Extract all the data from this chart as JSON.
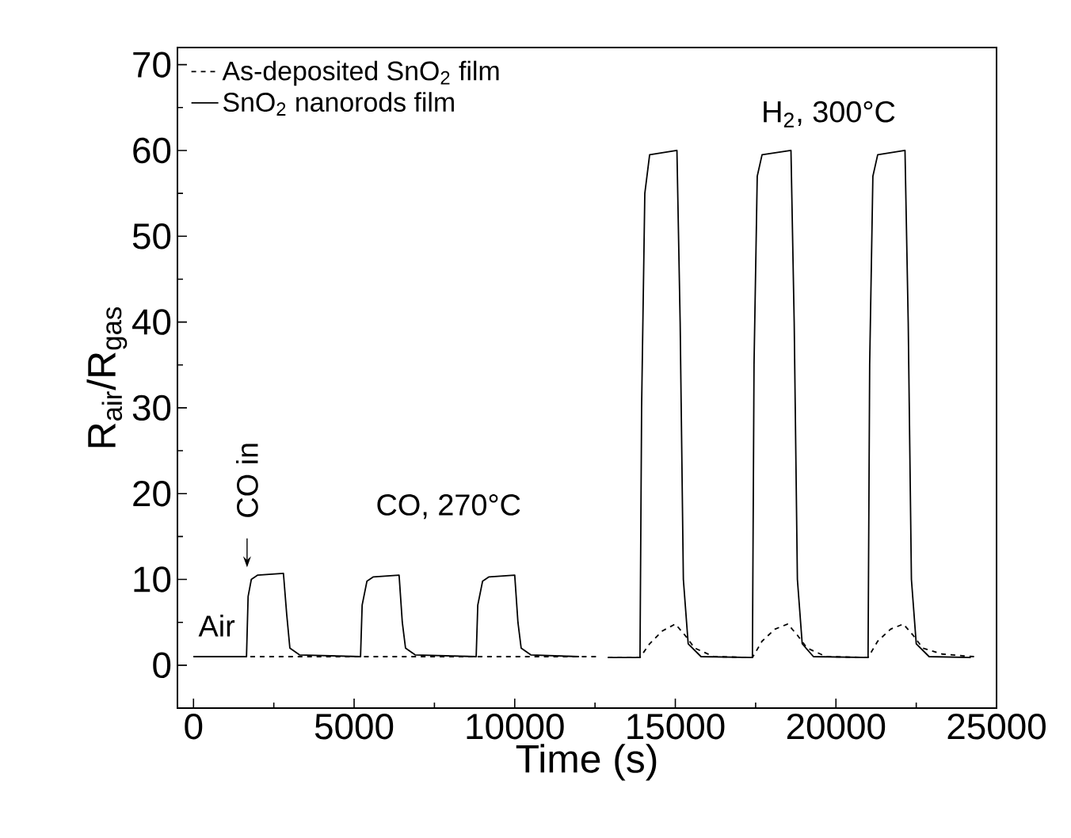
{
  "chart_data": {
    "type": "line",
    "xlabel": "Time (s)",
    "ylabel": "R$_{air}$/R$_{gas}$",
    "xlim": [
      -500,
      25000
    ],
    "ylim": [
      -5,
      72
    ],
    "xticks": [
      0,
      5000,
      10000,
      15000,
      20000,
      25000
    ],
    "yticks": [
      0,
      10,
      20,
      30,
      40,
      50,
      60,
      70
    ],
    "legend": "top left",
    "annotations": [
      "Air",
      "CO in",
      "CO, 270°C",
      "H$_{2}$, 300°C"
    ],
    "series": [
      {
        "name": "As-deposited SnO$_{2}$ film",
        "color": "#000000",
        "line_style": "dashed",
        "x": [
          0,
          12600,
          12750,
          12900,
          13900,
          14200,
          14600,
          15000,
          15300,
          15600,
          16200,
          17400,
          17700,
          18100,
          18500,
          18800,
          19100,
          19700,
          21000,
          21300,
          21700,
          22100,
          22400,
          22700,
          23300,
          24300
        ],
        "values": [
          1,
          1,
          null,
          0.9,
          0.9,
          2.5,
          4,
          4.8,
          3.5,
          2,
          1,
          0.9,
          2.8,
          4.2,
          4.8,
          3.5,
          2,
          1,
          0.9,
          2.8,
          4.2,
          4.8,
          3.5,
          2,
          1.3,
          1
        ]
      },
      {
        "name": "SnO$_{2}$ nanorods film",
        "color": "#000000",
        "line_style": "solid",
        "x": [
          0,
          1650,
          1700,
          1800,
          2000,
          2800,
          2900,
          3000,
          3300,
          5200,
          5250,
          5400,
          5600,
          6400,
          6500,
          6600,
          6900,
          8800,
          8850,
          9000,
          9200,
          10000,
          10100,
          10200,
          10500,
          12000,
          12500,
          12900,
          13900,
          13950,
          14050,
          14200,
          15050,
          15150,
          15250,
          15400,
          15800,
          17400,
          17450,
          17550,
          17700,
          18600,
          18700,
          18800,
          18950,
          19300,
          21000,
          21050,
          21150,
          21300,
          22150,
          22250,
          22350,
          22500,
          22900,
          24200
        ],
        "values": [
          1,
          1,
          8,
          10,
          10.5,
          10.7,
          6,
          2,
          1.2,
          1,
          7,
          9.8,
          10.3,
          10.5,
          5,
          2,
          1.2,
          1,
          7,
          9.8,
          10.3,
          10.5,
          5,
          2,
          1.2,
          1,
          null,
          0.9,
          0.9,
          30,
          55,
          59.5,
          60,
          40,
          10,
          2.5,
          1,
          0.9,
          35,
          57,
          59.5,
          60,
          40,
          10,
          2.5,
          1,
          0.9,
          35,
          57,
          59.5,
          60,
          40,
          10,
          2.5,
          1,
          0.9
        ]
      }
    ]
  }
}
